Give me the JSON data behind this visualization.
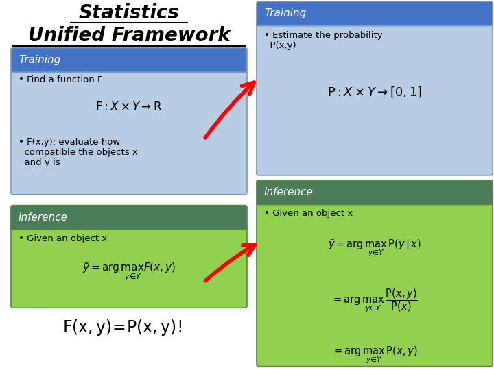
{
  "title_statistics": "Statistics",
  "title_unified": "Unified Framework",
  "bg_color": "#ffffff",
  "left_box_training_header": "Training",
  "left_box_training_header_color": "#4472c4",
  "left_box_training_bg": "#b8cce4",
  "left_box_training_text1": "• Find a function F",
  "left_box_training_text2": "• F(x,y): evaluate how\n  compatible the objects x\n  and y is",
  "left_box_inference_header": "Inference",
  "left_box_inference_header_color": "#4a7c59",
  "left_box_inference_bg": "#92d050",
  "left_box_inference_text1": "• Given an object x",
  "right_box_training_header": "Training",
  "right_box_training_header_color": "#4472c4",
  "right_box_training_bg": "#b8cce4",
  "right_box_training_text1": "• Estimate the probability\n  P(x,y)",
  "right_box_inference_header": "Inference",
  "right_box_inference_header_color": "#4a7c59",
  "right_box_inference_bg": "#92d050",
  "right_box_inference_text1": "• Given an object x",
  "arrow_color": "#ff0000",
  "header_text_color": "#ffffff",
  "body_text_color": "#000000"
}
